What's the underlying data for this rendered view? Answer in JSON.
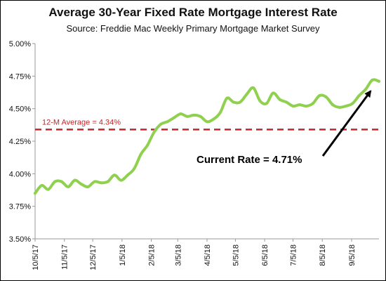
{
  "chart_data": {
    "type": "line",
    "title": "Average 30-Year Fixed Rate Mortgage Interest Rate",
    "subtitle": "Source: Freddie Mac Weekly Primary Mortgage Market Survey",
    "ylim": [
      3.5,
      5.0
    ],
    "yticks": [
      3.5,
      3.75,
      4.0,
      4.25,
      4.5,
      4.75,
      5.0
    ],
    "ytick_labels": [
      "3.50%",
      "3.75%",
      "4.00%",
      "4.25%",
      "4.50%",
      "4.75%",
      "5.00%"
    ],
    "xtick_labels": [
      "10/5/17",
      "11/5/17",
      "12/5/17",
      "1/5/18",
      "2/5/18",
      "3/5/18",
      "4/5/18",
      "5/5/18",
      "6/5/18",
      "7/5/18",
      "8/5/18",
      "9/5/18"
    ],
    "grid": false,
    "series": [
      {
        "color": "#8fd14f",
        "x": [
          "10/5/17",
          "10/12/17",
          "10/19/17",
          "10/26/17",
          "11/2/17",
          "11/9/17",
          "11/16/17",
          "11/23/17",
          "11/30/17",
          "12/7/17",
          "12/14/17",
          "12/21/17",
          "12/28/17",
          "1/4/18",
          "1/11/18",
          "1/18/18",
          "1/25/18",
          "2/1/18",
          "2/8/18",
          "2/15/18",
          "2/22/18",
          "3/1/18",
          "3/8/18",
          "3/15/18",
          "3/22/18",
          "3/29/18",
          "4/5/18",
          "4/12/18",
          "4/19/18",
          "4/26/18",
          "5/3/18",
          "5/10/18",
          "5/17/18",
          "5/24/18",
          "5/31/18",
          "6/7/18",
          "6/14/18",
          "6/21/18",
          "6/28/18",
          "7/5/18",
          "7/12/18",
          "7/19/18",
          "7/26/18",
          "8/2/18",
          "8/9/18",
          "8/16/18",
          "8/23/18",
          "8/30/18",
          "9/6/18",
          "9/13/18",
          "9/20/18",
          "9/27/18",
          "10/4/18"
        ],
        "values": [
          3.85,
          3.91,
          3.88,
          3.94,
          3.94,
          3.9,
          3.95,
          3.92,
          3.9,
          3.94,
          3.93,
          3.94,
          3.99,
          3.95,
          3.99,
          4.04,
          4.15,
          4.22,
          4.32,
          4.38,
          4.4,
          4.43,
          4.46,
          4.44,
          4.45,
          4.44,
          4.4,
          4.42,
          4.47,
          4.58,
          4.55,
          4.55,
          4.61,
          4.66,
          4.56,
          4.54,
          4.62,
          4.57,
          4.55,
          4.52,
          4.53,
          4.52,
          4.54,
          4.6,
          4.59,
          4.53,
          4.51,
          4.52,
          4.54,
          4.6,
          4.65,
          4.72,
          4.71
        ]
      }
    ],
    "reference_line": {
      "value": 4.34,
      "label": "12-M Average = 4.34%",
      "color": "#c0272d",
      "style": "dashed"
    },
    "annotation": {
      "text": "Current Rate = 4.71%",
      "arrow_to": "last-point"
    }
  }
}
